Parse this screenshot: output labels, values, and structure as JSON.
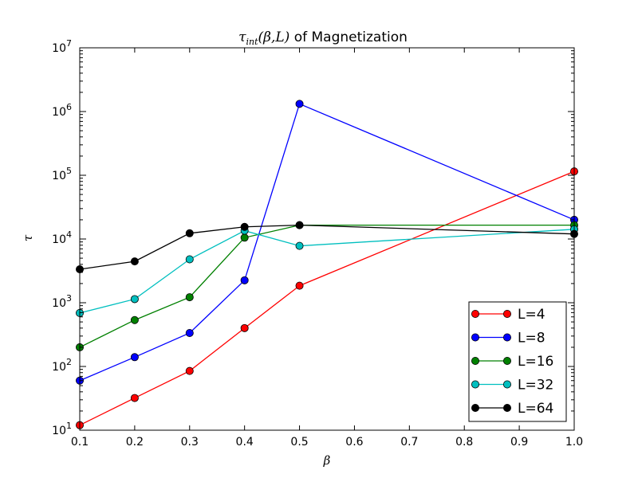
{
  "chart_data": {
    "type": "line",
    "title": {
      "math_tau": "τ",
      "math_sub": "int",
      "math_args": "(β,L)",
      "suffix": " of Magnetization"
    },
    "xlabel": "β",
    "ylabel": "τ",
    "xlim": [
      0.1,
      1.0
    ],
    "ylim": [
      10,
      10000000
    ],
    "yscale": "log",
    "grid": false,
    "legend_position": "lower-right",
    "x_ticks": [
      "0.1",
      "0.2",
      "0.3",
      "0.4",
      "0.5",
      "0.6",
      "0.7",
      "0.8",
      "0.9",
      "1.0"
    ],
    "y_ticks": [
      {
        "value": 10,
        "base": "10",
        "exp": "1"
      },
      {
        "value": 100,
        "base": "10",
        "exp": "2"
      },
      {
        "value": 1000,
        "base": "10",
        "exp": "3"
      },
      {
        "value": 10000,
        "base": "10",
        "exp": "4"
      },
      {
        "value": 100000,
        "base": "10",
        "exp": "5"
      },
      {
        "value": 1000000,
        "base": "10",
        "exp": "6"
      },
      {
        "value": 10000000,
        "base": "10",
        "exp": "7"
      }
    ],
    "x": [
      0.1,
      0.2,
      0.3,
      0.4,
      0.5,
      1.0
    ],
    "series": [
      {
        "name": "L=4",
        "color": "#ff0000",
        "values": [
          12,
          32,
          85,
          400,
          1850,
          115000
        ]
      },
      {
        "name": "L=8",
        "color": "#0000ff",
        "values": [
          60,
          140,
          335,
          2250,
          1320000,
          20000
        ]
      },
      {
        "name": "L=16",
        "color": "#008000",
        "values": [
          200,
          535,
          1220,
          10500,
          16500,
          16500
        ]
      },
      {
        "name": "L=32",
        "color": "#00bfbf",
        "values": [
          690,
          1140,
          4800,
          13500,
          7800,
          14200
        ]
      },
      {
        "name": "L=64",
        "color": "#000000",
        "values": [
          3350,
          4450,
          12300,
          15500,
          16500,
          12000
        ]
      }
    ]
  }
}
